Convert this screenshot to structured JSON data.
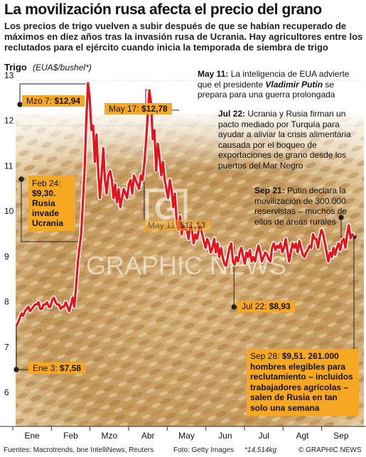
{
  "title": "La movilización rusa afecta el precio del grano",
  "subtitle": "Los precios de trigo vuelven a subir después de que se habían recuperado de máximos en diez años tras la invasión rusa de Ucrania. Hay agricultores entre los reclutados para el ejército cuando inicia la temporada de siembra de trigo",
  "axis": {
    "label": "Trigo",
    "unit": "(EUA$/bushel*)"
  },
  "annotations": {
    "may11": {
      "date": "May 11:",
      "text1": " La inteligencia de EUA advierte que el presidente ",
      "name": "Vladimir Putin",
      "text2": " se prepara para una guerra prolongada"
    },
    "jul22": {
      "date": "Jul 22:",
      "text": " Ucrania y Rusia firman un pacto mediado por Turquía para ayudar a aliviar la crisis alimentaria causada por el boqueo de exportaciones de grano desde los puertos del Mar Negro"
    },
    "sep21": {
      "date": "Sep 21:",
      "text": " Putin declara la movilización de 300.000 reservistas – muchos de ellos de áreas rurales"
    }
  },
  "callouts": {
    "mzo7": {
      "label": "Mzo 7:",
      "value": "$12,94"
    },
    "may17": {
      "label": "May 17:",
      "value": "$12,78"
    },
    "feb24": {
      "label": "Feb 24:",
      "value": "$9,30.",
      "text": "Rusia invade Ucrania"
    },
    "may11": {
      "label": "May 11:",
      "value": "$11,13"
    },
    "jul22": {
      "label": "Jul 22:",
      "value": "$8,93"
    },
    "ene3": {
      "label": "Ene 3:",
      "value": "$7,58"
    },
    "sep28": {
      "label": "Sep 28:",
      "value": "$9,51.",
      "text": " 261.000 hombres elegibles para reclutamiento – incluidos trabajadores agrícolas – salen de Rusia en tan solo una semana"
    }
  },
  "footer": {
    "sources": "Fuentes: Macrotrends, bne IntelliNews, Reuters",
    "photo": "Foto: Getty Images",
    "note": "*14,514kg",
    "brand": "© GRAPHIC NEWS"
  },
  "watermark": "GRAPHIC NEWS",
  "colors": {
    "line": "#e3141b",
    "callout": "#f7a823",
    "text": "#111111"
  },
  "chart_data": {
    "type": "line",
    "ylabel": "Trigo (EUA$/bushel*)",
    "ylim": [
      6,
      13
    ],
    "yticks": [
      "6",
      "7",
      "8",
      "9",
      "10",
      "11",
      "12",
      "13"
    ],
    "categories": [
      "Ene",
      "Feb",
      "Mzo",
      "Abr",
      "May",
      "Jun",
      "Jul",
      "Agt",
      "Sep"
    ],
    "x": [
      0,
      1,
      2,
      3,
      4,
      5,
      6,
      7,
      8,
      9,
      10,
      11,
      12,
      13,
      14,
      15,
      16,
      17,
      18,
      19,
      20,
      21,
      22,
      23,
      24,
      25,
      26,
      27,
      28,
      29,
      30,
      31,
      32,
      33,
      34,
      35,
      36,
      37,
      38,
      39,
      40,
      41,
      42,
      43,
      44,
      45,
      46,
      47,
      48,
      49,
      50,
      51,
      52,
      53,
      54,
      55,
      56,
      57,
      58,
      59,
      60,
      61,
      62,
      63,
      64,
      65,
      66,
      67,
      68,
      69,
      70,
      71,
      72,
      73,
      74,
      75,
      76,
      77,
      78,
      79,
      80,
      81,
      82,
      83,
      84,
      85,
      86,
      87,
      88,
      89,
      90,
      91,
      92,
      93,
      94,
      95,
      96,
      97,
      98,
      99,
      100,
      101,
      102,
      103,
      104,
      105,
      106,
      107,
      108,
      109,
      110,
      111,
      112,
      113,
      114,
      115,
      116,
      117,
      118,
      119,
      120,
      121,
      122,
      123,
      124,
      125,
      126,
      127,
      128,
      129,
      130,
      131,
      132,
      133,
      134,
      135,
      136,
      137,
      138,
      139,
      140,
      141,
      142,
      143,
      144,
      145,
      146,
      147,
      148,
      149,
      150,
      151,
      152,
      153,
      154,
      155,
      156,
      157,
      158,
      159,
      160,
      161,
      162,
      163,
      164,
      165,
      166,
      167,
      168,
      169,
      170,
      171,
      172,
      173,
      174,
      175,
      176,
      177,
      178,
      179,
      180,
      181,
      182,
      183,
      184,
      185,
      186,
      187,
      188,
      189,
      190,
      191,
      192,
      193,
      194,
      195,
      196,
      197,
      198
    ],
    "values": [
      7.58,
      7.65,
      7.75,
      7.85,
      7.8,
      7.9,
      7.95,
      8.0,
      7.9,
      7.95,
      8.0,
      8.05,
      8.05,
      8.1,
      7.95,
      7.95,
      8.05,
      8.05,
      8.1,
      8.0,
      8.0,
      8.15,
      8.2,
      8.1,
      8.05,
      8.05,
      7.95,
      8.0,
      8.0,
      8.1,
      8.0,
      7.9,
      8.05,
      8.2,
      8.0,
      8.45,
      8.95,
      9.3,
      9.6,
      10.3,
      11.0,
      12.1,
      12.94,
      12.6,
      11.9,
      12.0,
      11.2,
      11.8,
      11.0,
      10.4,
      10.9,
      11.5,
      10.8,
      10.5,
      10.9,
      11.0,
      10.8,
      10.4,
      10.7,
      10.3,
      10.6,
      10.2,
      10.4,
      10.6,
      10.5,
      10.4,
      10.7,
      10.8,
      10.5,
      10.9,
      10.8,
      10.7,
      10.6,
      10.9,
      10.8,
      11.13,
      11.6,
      12.2,
      12.78,
      12.5,
      11.7,
      11.9,
      11.0,
      11.6,
      11.3,
      10.9,
      11.2,
      10.8,
      10.6,
      10.4,
      10.8,
      10.6,
      10.2,
      10.5,
      9.9,
      9.7,
      10.0,
      9.6,
      9.8,
      9.7,
      9.7,
      9.5,
      9.8,
      9.7,
      9.4,
      9.6,
      9.5,
      9.7,
      9.8,
      9.6,
      9.45,
      9.3,
      9.5,
      9.4,
      9.2,
      9.3,
      9.5,
      9.2,
      9.4,
      9.1,
      9.3,
      9.1,
      8.95,
      8.9,
      9.1,
      9.3,
      9.4,
      9.0,
      8.93,
      9.1,
      9.0,
      9.2,
      9.3,
      9.1,
      8.95,
      9.2,
      9.1,
      9.25,
      9.0,
      9.1,
      9.0,
      9.2,
      9.35,
      9.2,
      9.0,
      9.1,
      9.2,
      9.15,
      9.05,
      9.0,
      9.3,
      9.4,
      9.25,
      9.35,
      9.3,
      9.4,
      9.2,
      9.3,
      9.5,
      9.25,
      9.0,
      9.2,
      9.4,
      9.3,
      9.4,
      9.2,
      9.45,
      9.3,
      9.15,
      9.1,
      9.2,
      9.25,
      9.35,
      9.3,
      9.6,
      9.5,
      9.5,
      9.3,
      9.55,
      9.7,
      9.6,
      9.4,
      9.2,
      9.0,
      9.2,
      9.1,
      9.3,
      9.15,
      9.3,
      9.4,
      9.25,
      9.45,
      9.5,
      9.3,
      9.6,
      9.8,
      9.51,
      9.6,
      9.55
    ]
  }
}
